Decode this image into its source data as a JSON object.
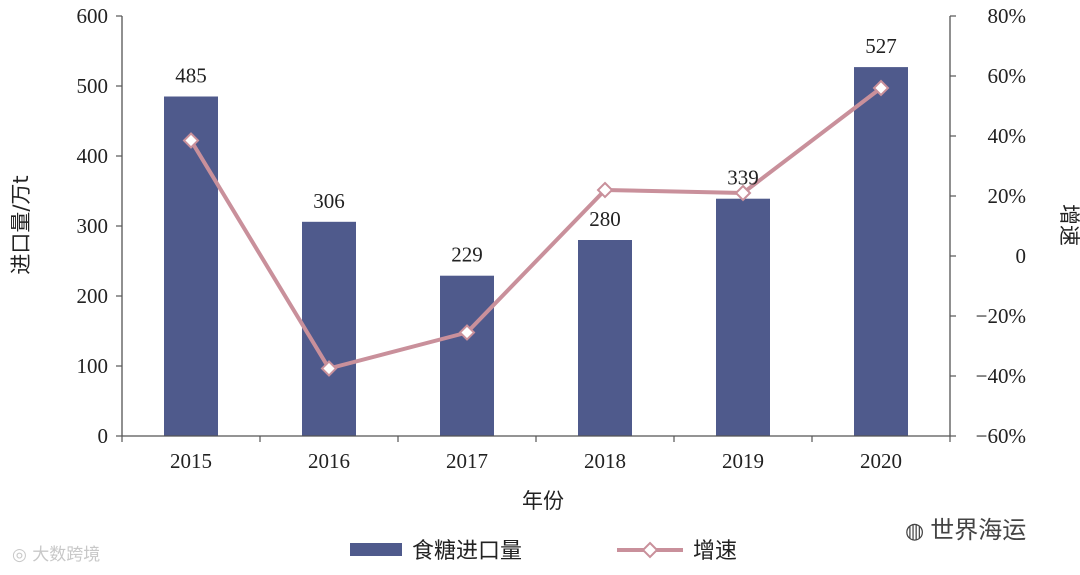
{
  "chart_data": {
    "type": "bar",
    "categories": [
      "2015",
      "2016",
      "2017",
      "2018",
      "2019",
      "2020"
    ],
    "series": [
      {
        "name": "食糖进口量",
        "type": "bar",
        "axis": "left",
        "values": [
          485,
          306,
          229,
          280,
          339,
          527
        ],
        "color": "#4f5a8c"
      },
      {
        "name": "增速",
        "type": "line",
        "axis": "right",
        "values": [
          38.5,
          -37.5,
          -25.5,
          22,
          21,
          56
        ],
        "color": "#c9909b",
        "marker": "diamond-open"
      }
    ],
    "data_labels": [
      "485",
      "306",
      "229",
      "280",
      "339",
      "527"
    ],
    "xlabel": "年份",
    "ylabel": "进口量/万t",
    "y2label": "增速",
    "ylim": [
      0,
      600
    ],
    "y2lim": [
      -60,
      80
    ],
    "yticks": [
      "0",
      "100",
      "200",
      "300",
      "400",
      "500",
      "600"
    ],
    "y2ticks": [
      "−60%",
      "−40%",
      "−20%",
      "0",
      "20%",
      "40%",
      "60%",
      "80%"
    ],
    "legend_position": "bottom",
    "grid": false
  },
  "watermarks": {
    "left": "大数跨境",
    "left_icon": "weibo-logo-icon",
    "right": "世界海运",
    "right_icon": "wechat-logo-icon"
  }
}
